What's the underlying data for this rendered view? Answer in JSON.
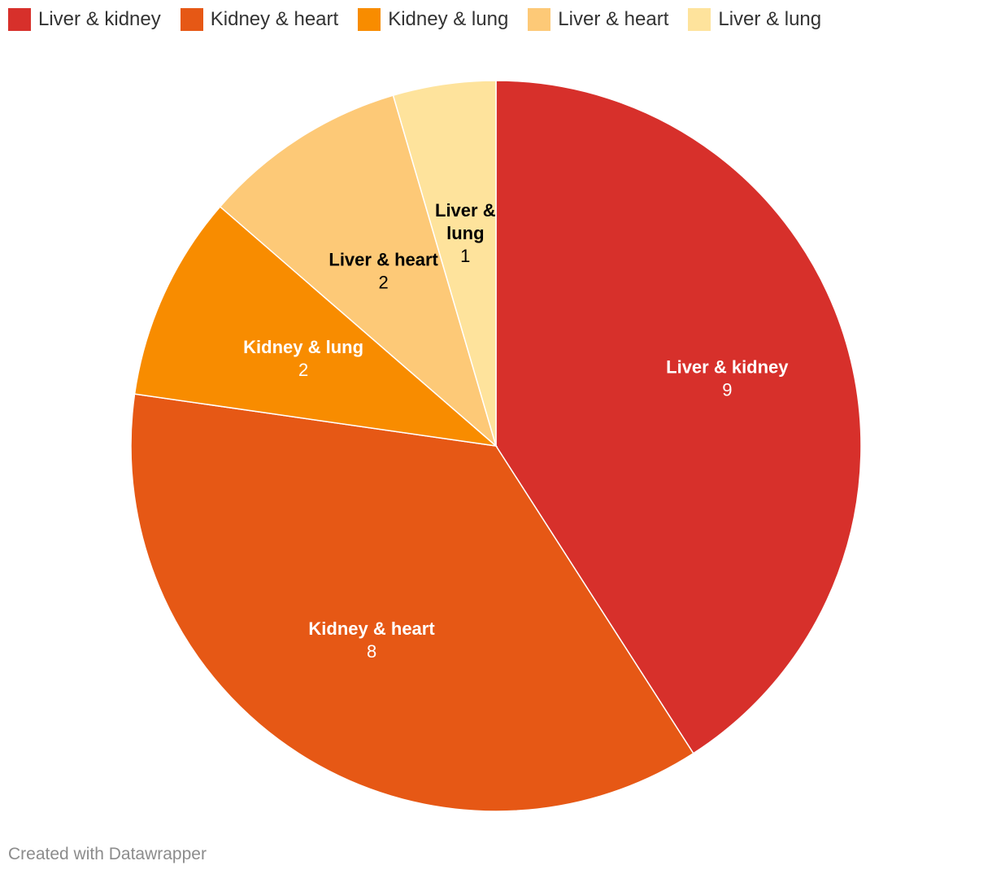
{
  "chart_data": {
    "type": "pie",
    "legend_position": "top-left",
    "slices": [
      {
        "label": "Liver & kidney",
        "value": 9,
        "color": "#d7302b",
        "label_color": "#ffffff"
      },
      {
        "label": "Kidney & heart",
        "value": 8,
        "color": "#e65815",
        "label_color": "#ffffff"
      },
      {
        "label": "Kidney & lung",
        "value": 2,
        "color": "#f88c00",
        "label_color": "#ffffff"
      },
      {
        "label": "Liver & heart",
        "value": 2,
        "color": "#fdc977",
        "label_color": "#000000"
      },
      {
        "label": "Liver & lung",
        "value": 1,
        "color": "#fee39c",
        "label_color": "#000000"
      }
    ]
  },
  "footer": {
    "credit": "Created with Datawrapper"
  }
}
